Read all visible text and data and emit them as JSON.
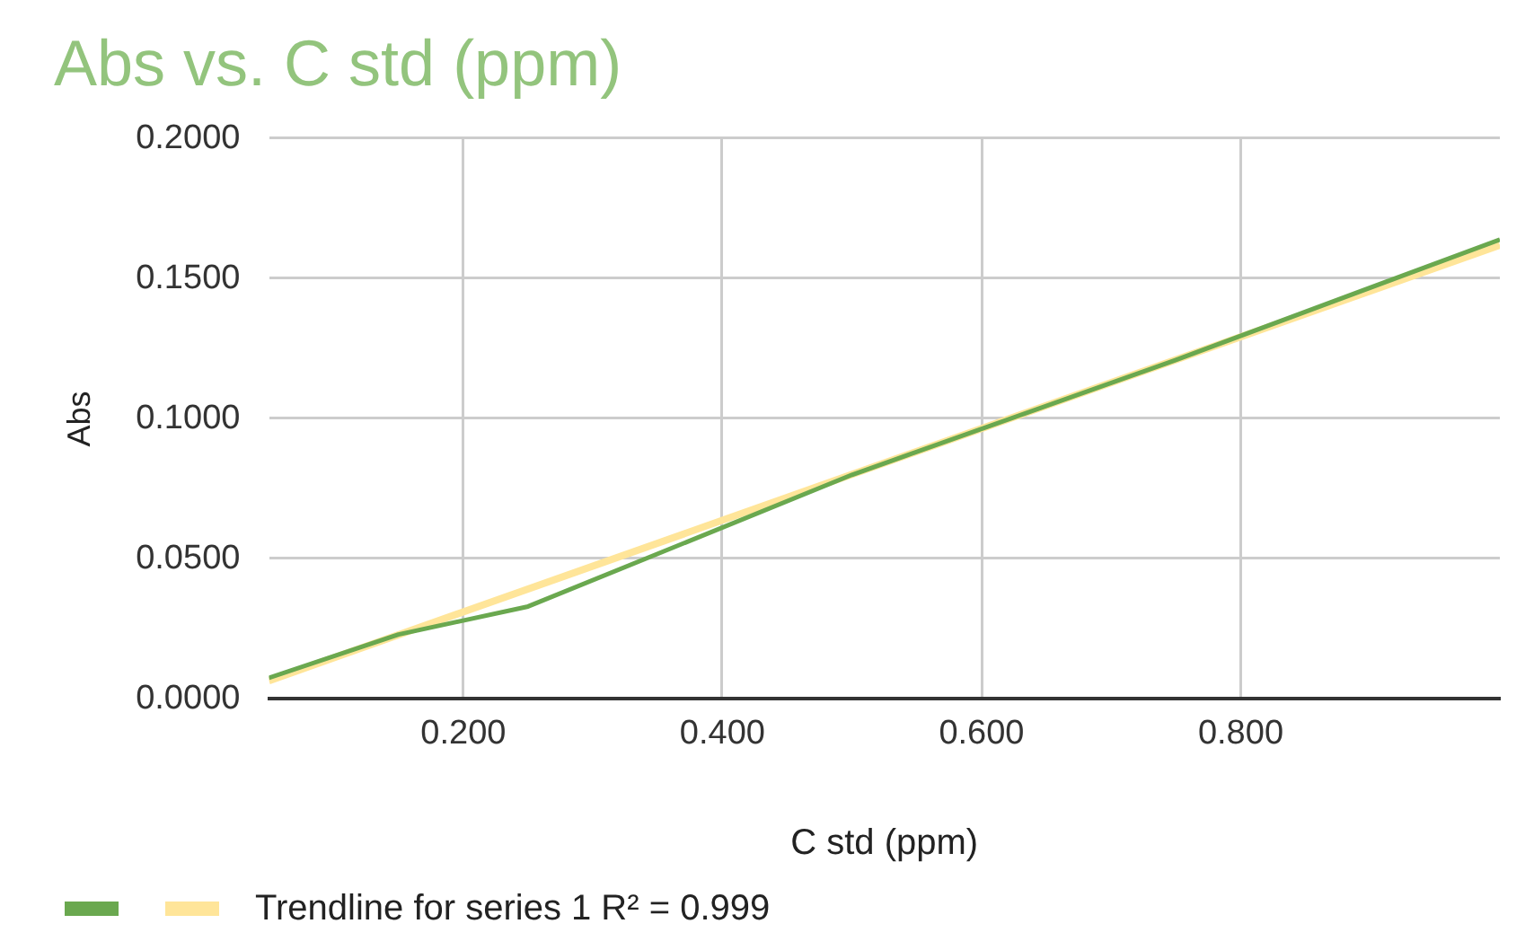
{
  "chart_data": {
    "type": "line",
    "title": "Abs vs. C std (ppm)",
    "xlabel": "C std (ppm)",
    "ylabel": "Abs",
    "xlim": [
      0.05,
      1.0
    ],
    "xticks": [
      {
        "value": 0.2,
        "label": "0.200"
      },
      {
        "value": 0.4,
        "label": "0.400"
      },
      {
        "value": 0.6,
        "label": "0.600"
      },
      {
        "value": 0.8,
        "label": "0.800"
      }
    ],
    "ylim": [
      0,
      0.2
    ],
    "yticks": [
      {
        "value": 0,
        "label": "0.0000"
      },
      {
        "value": 0.05,
        "label": "0.0500"
      },
      {
        "value": 0.1,
        "label": "0.1000"
      },
      {
        "value": 0.15,
        "label": "0.1500"
      },
      {
        "value": 0.2,
        "label": "0.2000"
      }
    ],
    "grid": true,
    "legend": "bottom left",
    "marker": "none",
    "line_style": "solid",
    "series": [
      {
        "color": "#6aa84f",
        "x": [
          0.05,
          0.15,
          0.25,
          0.5,
          0.75,
          1.0
        ],
        "values": [
          0.0075,
          0.023,
          0.033,
          0.08,
          0.121,
          0.164
        ]
      },
      {
        "name": "Trendline for series 1 R² = 0.999",
        "type": "line",
        "color": "#ffe599",
        "x": [
          0.05,
          1.0
        ],
        "values": [
          0.0065,
          0.162
        ]
      }
    ]
  }
}
